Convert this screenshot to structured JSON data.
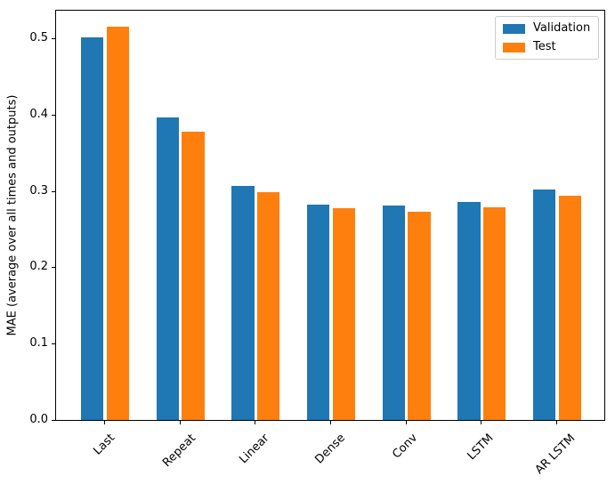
{
  "chart_data": {
    "type": "bar",
    "title": "",
    "ylabel": "MAE (average over all times and outputs)",
    "xlabel": "",
    "categories": [
      "Last",
      "Repeat",
      "Linear",
      "Dense",
      "Conv",
      "LSTM",
      "AR LSTM"
    ],
    "series": [
      {
        "name": "Validation",
        "color": "#1f77b4",
        "values": [
          0.501,
          0.396,
          0.306,
          0.282,
          0.281,
          0.286,
          0.302
        ]
      },
      {
        "name": "Test",
        "color": "#ff7f0e",
        "values": [
          0.515,
          0.377,
          0.298,
          0.277,
          0.273,
          0.279,
          0.294
        ]
      }
    ],
    "yticks": [
      0.0,
      0.1,
      0.2,
      0.3,
      0.4,
      0.5
    ],
    "ytick_labels": [
      "0.0",
      "0.1",
      "0.2",
      "0.3",
      "0.4",
      "0.5"
    ],
    "ylim": [
      0,
      0.536
    ],
    "xlim": [
      -0.65,
      6.65
    ],
    "bar_width": 0.3,
    "bar_group_offset": 0.17,
    "xtick_rotation": 45,
    "grid": false,
    "legend": {
      "position": "upper right",
      "entries": [
        "Validation",
        "Test"
      ]
    }
  }
}
